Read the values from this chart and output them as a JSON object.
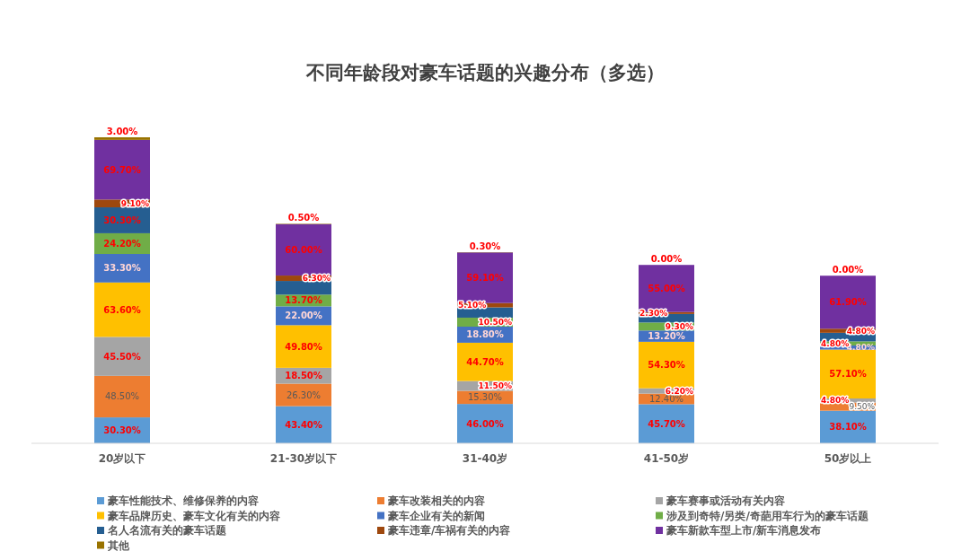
{
  "chart_data": {
    "type": "bar",
    "stacked": true,
    "title": "不同年龄段对豪车话题的兴趣分布（多选）",
    "categories": [
      "20岁以下",
      "21-30岁以下",
      "31-40岁",
      "41-50岁",
      "50岁以上"
    ],
    "legend": "bottom",
    "series": [
      {
        "name": "豪车性能技术、维修保养的内容",
        "color": "#5b9bd5",
        "values": [
          30.3,
          43.4,
          46.0,
          45.7,
          38.1
        ],
        "value_labels": [
          "30.30%",
          "43.40%",
          "46.00%",
          "45.70%",
          "38.10%"
        ]
      },
      {
        "name": "豪车改装相关的内容",
        "color": "#ed7d31",
        "values": [
          48.5,
          26.3,
          15.3,
          12.4,
          9.5
        ],
        "value_labels": [
          "48.50%",
          "26.30%",
          "15.30%",
          "12.40%",
          "9.50%"
        ]
      },
      {
        "name": "豪车赛事或活动有关内容",
        "color": "#a5a5a5",
        "values": [
          45.5,
          18.5,
          11.5,
          6.2,
          4.8
        ],
        "value_labels": [
          "45.50%",
          "18.50%",
          "11.50%",
          "6.20%",
          "4.80%"
        ]
      },
      {
        "name": "豪车品牌历史、豪车文化有关的内容",
        "color": "#ffc000",
        "values": [
          63.6,
          49.8,
          44.7,
          54.3,
          57.1
        ],
        "value_labels": [
          "63.60%",
          "49.80%",
          "44.70%",
          "54.30%",
          "57.10%"
        ]
      },
      {
        "name": "豪车企业有关的新闻",
        "color": "#4472c4",
        "values": [
          33.3,
          22.0,
          18.8,
          13.2,
          4.8
        ],
        "value_labels": [
          "33.30%",
          "22.00%",
          "18.80%",
          "13.20%",
          "4.80%"
        ]
      },
      {
        "name": "涉及到奇特/另类/奇葩用车行为的豪车话题",
        "color": "#70ad47",
        "values": [
          24.2,
          13.7,
          10.5,
          9.3,
          4.8
        ],
        "value_labels": [
          "24.20%",
          "13.70%",
          "10.50%",
          "9.30%",
          "4.80%"
        ]
      },
      {
        "name": "名人名流有关的豪车话题",
        "color": "#255e91",
        "values": [
          30.3,
          16,
          12,
          10,
          10
        ],
        "value_labels": [
          "30.30%",
          null,
          null,
          null,
          null
        ]
      },
      {
        "name": "豪车违章/车祸有关的内容",
        "color": "#9e480e",
        "values": [
          9.1,
          6.3,
          5.1,
          2.3,
          4.8
        ],
        "value_labels": [
          "9.10%",
          "6.30%",
          "5.10%",
          "2.30%",
          "4.80%"
        ]
      },
      {
        "name": "豪车新款车型上市/新车消息发布",
        "color": "#7030a0",
        "values": [
          69.7,
          60.0,
          59.1,
          55.0,
          61.9
        ],
        "value_labels": [
          "69.70%",
          "60.00%",
          "59.10%",
          "55.00%",
          "61.90%"
        ]
      },
      {
        "name": "其他",
        "color": "#997300",
        "values": [
          3.0,
          0.5,
          0.3,
          0.0,
          0.0
        ],
        "value_labels": [
          "3.00%",
          "0.50%",
          "0.30%",
          "0.00%",
          "0.00%"
        ]
      }
    ]
  }
}
